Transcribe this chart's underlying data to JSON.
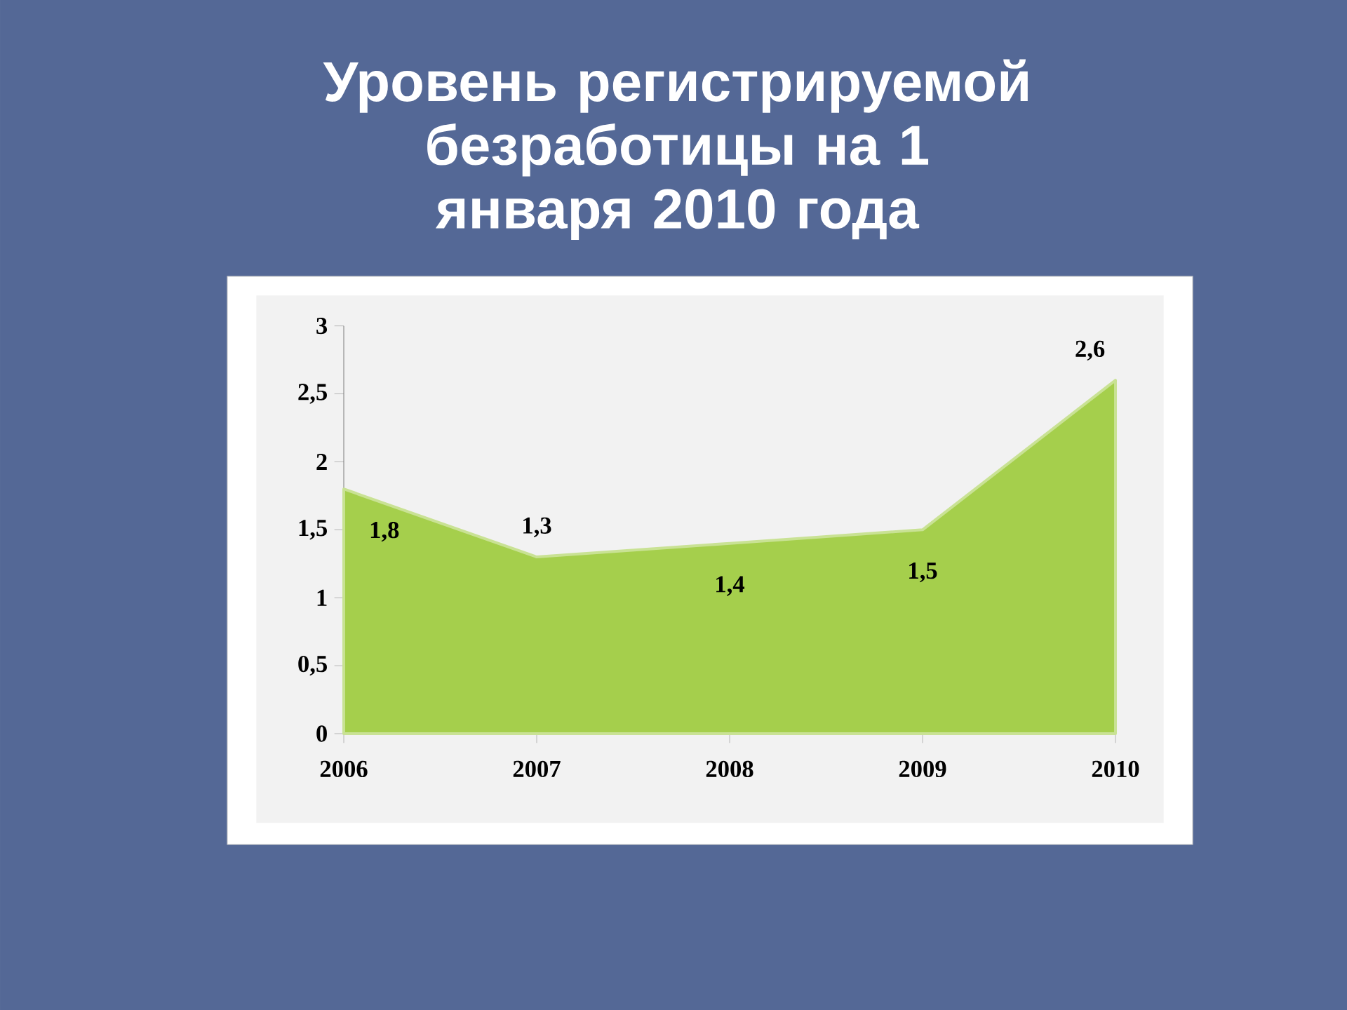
{
  "chart_data": {
    "type": "area",
    "title": "Уровень регистрируемой безработицы на 1 января 2010 года",
    "categories": [
      "2006",
      "2007",
      "2008",
      "2009",
      "2010"
    ],
    "values": [
      1.8,
      1.3,
      1.4,
      1.5,
      2.6
    ],
    "value_labels": [
      "1,8",
      "1,3",
      "1,4",
      "1,5",
      "2,6"
    ],
    "color": "#a5cf4c",
    "ylim": [
      0,
      3
    ],
    "yticks": [
      0,
      {
        "value": 0.5,
        "label": "0,5"
      },
      1,
      {
        "value": 1.5,
        "label": "1,5"
      },
      2,
      {
        "value": 2.5,
        "label": "2,5"
      },
      3
    ],
    "grid": false
  }
}
